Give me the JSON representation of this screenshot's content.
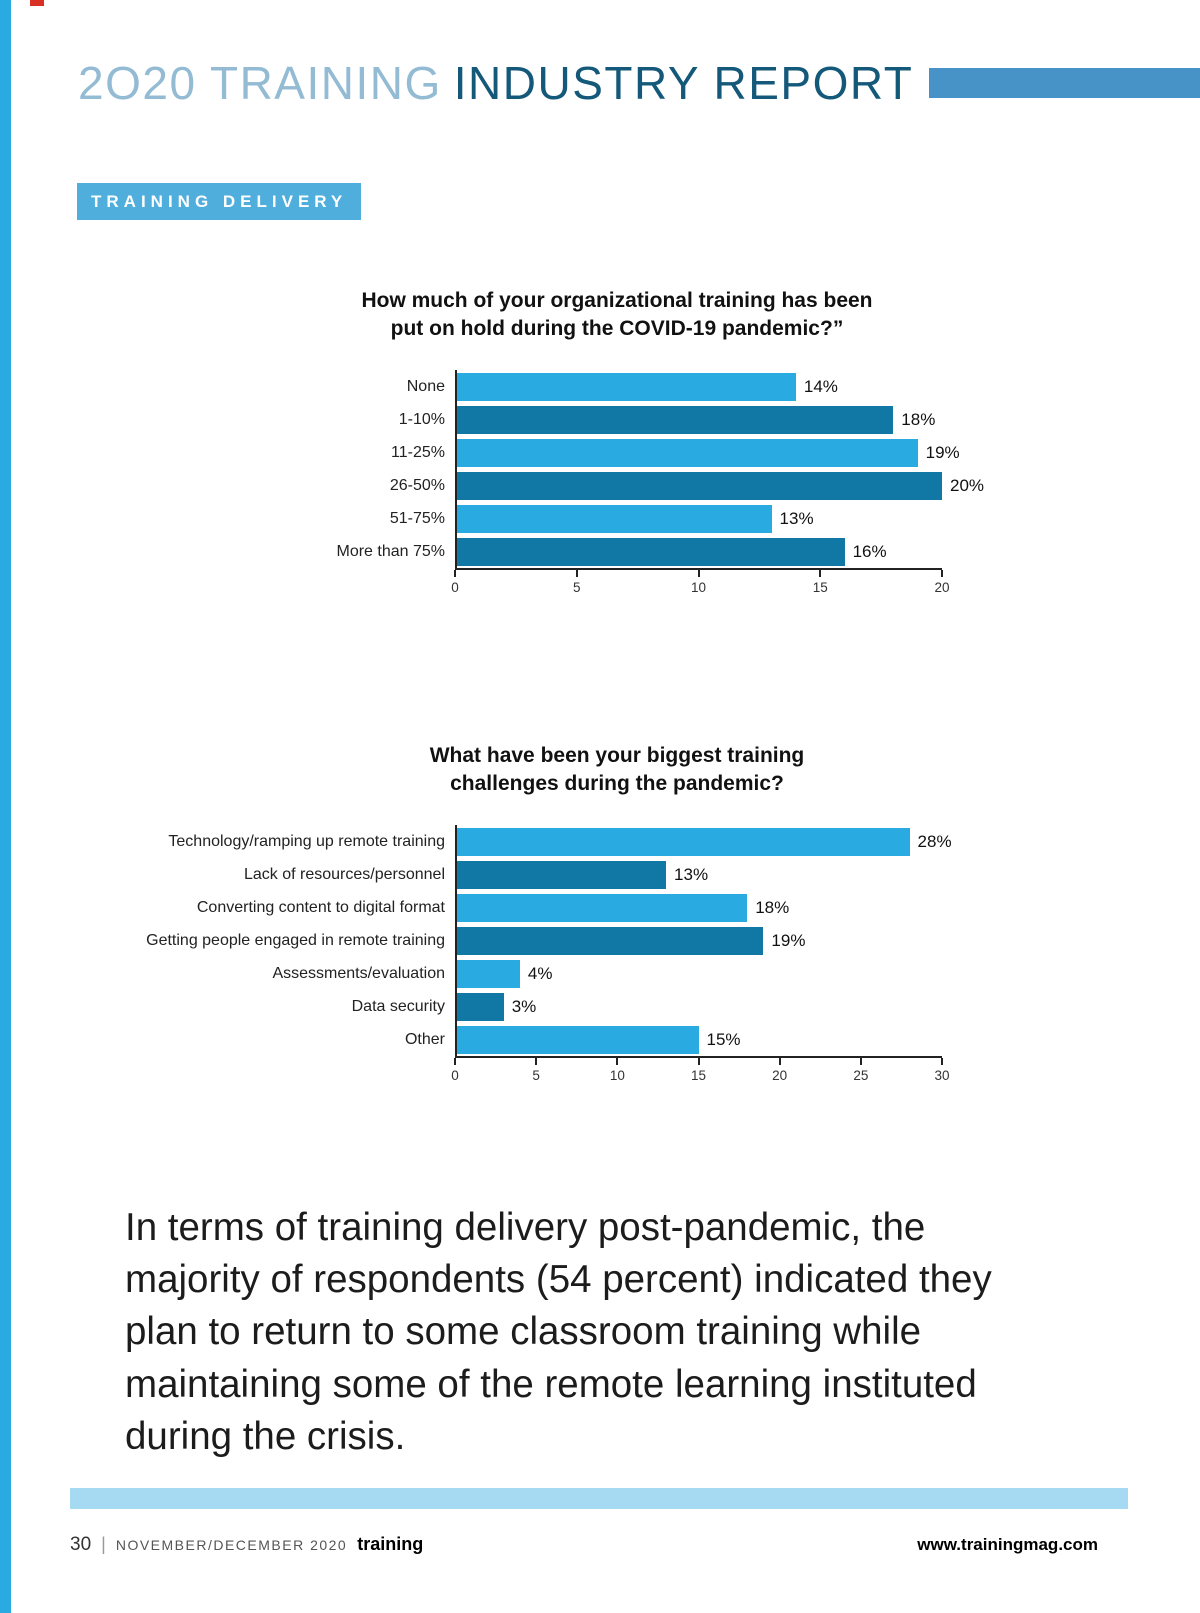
{
  "header": {
    "title_light": "2O20 TRAINING",
    "title_dark": "INDUSTRY REPORT"
  },
  "section_label": "TRAINING DELIVERY",
  "chart_data": [
    {
      "type": "bar",
      "orientation": "horizontal",
      "title": "How much of your organizational training has been put on hold during the COVID-19 pandemic?”",
      "title_lines": [
        "How much of your organizational training has been",
        "put on hold during the COVID-19 pandemic?”"
      ],
      "categories": [
        "None",
        "1-10%",
        "11-25%",
        "26-50%",
        "51-75%",
        "More than 75%"
      ],
      "values": [
        14,
        18,
        19,
        20,
        13,
        16
      ],
      "value_labels": [
        "14%",
        "18%",
        "19%",
        "20%",
        "13%",
        "16%"
      ],
      "unit": "%",
      "xlim": [
        0,
        20
      ],
      "xticks": [
        0,
        5,
        10,
        15,
        20
      ],
      "bar_color_pattern": "alternating light/dark starting light",
      "grid": false,
      "legend": false
    },
    {
      "type": "bar",
      "orientation": "horizontal",
      "title": "What have been your biggest training challenges during the pandemic?",
      "title_lines": [
        "What have been your biggest training",
        "challenges during the pandemic?"
      ],
      "categories": [
        "Technology/ramping up remote training",
        "Lack of resources/personnel",
        "Converting content to digital format",
        "Getting people engaged in remote training",
        "Assessments/evaluation",
        "Data security",
        "Other"
      ],
      "values": [
        28,
        13,
        18,
        19,
        4,
        3,
        15
      ],
      "value_labels": [
        "28%",
        "13%",
        "18%",
        "19%",
        "4%",
        "3%",
        "15%"
      ],
      "unit": "%",
      "xlim": [
        0,
        30
      ],
      "xticks": [
        0,
        5,
        10,
        15,
        20,
        25,
        30
      ],
      "bar_color_pattern": "alternating light/dark starting light",
      "grid": false,
      "legend": false
    }
  ],
  "body_paragraph": "In terms of training delivery post-pandemic, the majority of respondents (54 percent) indicated they plan to return to some classroom training while maintaining some of the remote learning instituted during the crisis.",
  "footer": {
    "page_number": "30",
    "divider": "|",
    "issue": "NOVEMBER/DECEMBER 2020",
    "magazine_name": "training",
    "website": "www.trainingmag.com"
  },
  "colors": {
    "light_bar": "#29ABE2",
    "dark_bar": "#1177A4",
    "accent_stripe": "#29ABE2",
    "header_bar": "#4793C8",
    "header_title_light": "#93BBD4",
    "header_title_dark": "#14587A",
    "section_bg": "#4FAEDC",
    "footer_band": "#A6D9F2"
  }
}
